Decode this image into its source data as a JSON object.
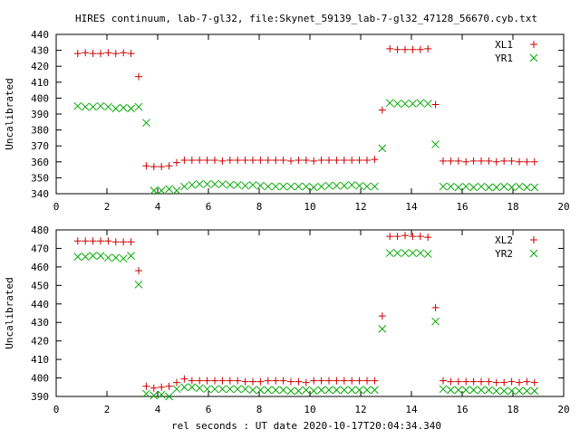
{
  "title": "HIRES continuum, lab-7-gl32, file:Skynet_59139_lab-7-gl32_47128_56670.cyb.txt",
  "xlabel": "rel seconds : UT date 2020-10-17T20:04:34.340",
  "colors": {
    "series1": "#cc0000",
    "series2": "#00aa00"
  },
  "chart_data": [
    {
      "type": "scatter",
      "ylabel": "Uncalibrated",
      "xlim": [
        0,
        20
      ],
      "ylim": [
        340,
        440
      ],
      "xticks": [
        0,
        2,
        4,
        6,
        8,
        10,
        12,
        14,
        16,
        18,
        20
      ],
      "yticks": [
        340,
        350,
        360,
        370,
        380,
        390,
        400,
        410,
        420,
        430,
        440
      ],
      "legend_position": "top-right",
      "series": [
        {
          "name": "XL1",
          "marker": "plus",
          "x": [
            0.85,
            1.15,
            1.45,
            1.75,
            2.05,
            2.35,
            2.65,
            2.95,
            3.25,
            3.55,
            3.85,
            4.15,
            4.45,
            4.75,
            5.05,
            5.35,
            5.65,
            5.95,
            6.25,
            6.55,
            6.85,
            7.15,
            7.45,
            7.75,
            8.05,
            8.35,
            8.65,
            8.95,
            9.25,
            9.55,
            9.85,
            10.15,
            10.45,
            10.75,
            11.05,
            11.35,
            11.65,
            11.95,
            12.25,
            12.55,
            12.85,
            13.15,
            13.45,
            13.75,
            14.05,
            14.35,
            14.65,
            14.95,
            15.25,
            15.55,
            15.85,
            16.15,
            16.45,
            16.75,
            17.05,
            17.35,
            17.65,
            17.95,
            18.25,
            18.55,
            18.85
          ],
          "y": [
            428,
            428.5,
            428,
            428,
            428.5,
            428,
            428.5,
            428,
            413.5,
            357.5,
            357,
            357,
            357.5,
            359.5,
            361,
            361,
            361,
            361,
            361,
            360.5,
            361,
            361,
            361,
            361,
            361,
            361,
            361,
            361,
            360.5,
            361,
            361,
            360.5,
            361,
            361,
            361,
            361,
            361,
            361,
            361,
            361.5,
            392.5,
            431,
            430.5,
            430.5,
            430.5,
            430.5,
            431,
            396,
            360.5,
            360.5,
            360.5,
            360,
            360.5,
            360.5,
            360.5,
            360,
            360.5,
            360.5,
            360,
            360,
            360
          ]
        },
        {
          "name": "YR1",
          "marker": "cross",
          "x": [
            0.85,
            1.15,
            1.45,
            1.75,
            2.05,
            2.35,
            2.65,
            2.95,
            3.25,
            3.55,
            3.85,
            4.15,
            4.45,
            4.75,
            5.05,
            5.35,
            5.65,
            5.95,
            6.25,
            6.55,
            6.85,
            7.15,
            7.45,
            7.75,
            8.05,
            8.35,
            8.65,
            8.95,
            9.25,
            9.55,
            9.85,
            10.15,
            10.45,
            10.75,
            11.05,
            11.35,
            11.65,
            11.95,
            12.25,
            12.55,
            12.85,
            13.15,
            13.45,
            13.75,
            14.05,
            14.35,
            14.65,
            14.95,
            15.25,
            15.55,
            15.85,
            16.15,
            16.45,
            16.75,
            17.05,
            17.35,
            17.65,
            17.95,
            18.25,
            18.55,
            18.85
          ],
          "y": [
            395,
            394.5,
            394.5,
            395,
            394.5,
            393.5,
            394,
            393.5,
            394.5,
            384.5,
            342,
            342,
            343,
            342,
            344.5,
            345.5,
            346,
            346,
            346,
            346,
            345.5,
            345.5,
            345,
            345.5,
            345,
            344.5,
            344.5,
            344.5,
            344.5,
            344.5,
            344.5,
            344,
            344.5,
            345,
            345,
            345,
            345.5,
            345,
            344.5,
            344.5,
            368.5,
            397,
            396.5,
            396.5,
            396.5,
            397,
            396.5,
            371,
            344.5,
            344.5,
            344,
            344.5,
            344,
            344.5,
            344,
            344,
            344.5,
            344,
            344.5,
            344,
            344
          ]
        }
      ]
    },
    {
      "type": "scatter",
      "ylabel": "Uncalibrated",
      "xlim": [
        0,
        20
      ],
      "ylim": [
        390,
        480
      ],
      "xticks": [
        0,
        2,
        4,
        6,
        8,
        10,
        12,
        14,
        16,
        18,
        20
      ],
      "yticks": [
        390,
        400,
        410,
        420,
        430,
        440,
        450,
        460,
        470,
        480
      ],
      "legend_position": "top-right",
      "series": [
        {
          "name": "XL2",
          "marker": "plus",
          "x": [
            0.85,
            1.15,
            1.45,
            1.75,
            2.05,
            2.35,
            2.65,
            2.95,
            3.25,
            3.55,
            3.85,
            4.15,
            4.45,
            4.75,
            5.05,
            5.35,
            5.65,
            5.95,
            6.25,
            6.55,
            6.85,
            7.15,
            7.45,
            7.75,
            8.05,
            8.35,
            8.65,
            8.95,
            9.25,
            9.55,
            9.85,
            10.15,
            10.45,
            10.75,
            11.05,
            11.35,
            11.65,
            11.95,
            12.25,
            12.55,
            12.85,
            13.15,
            13.45,
            13.75,
            14.05,
            14.35,
            14.65,
            14.95,
            15.25,
            15.55,
            15.85,
            16.15,
            16.45,
            16.75,
            17.05,
            17.35,
            17.65,
            17.95,
            18.25,
            18.55,
            18.85
          ],
          "y": [
            474,
            474,
            474,
            474,
            474,
            473.5,
            473.5,
            473.5,
            458,
            395.5,
            394.5,
            395,
            395.5,
            397.5,
            399.5,
            398.5,
            398.5,
            398.5,
            398.5,
            398.5,
            398.5,
            398.5,
            398,
            398,
            398,
            398.5,
            398.5,
            398.5,
            398,
            398,
            397.5,
            398.5,
            398.5,
            398.5,
            398.5,
            398.5,
            398.5,
            398.5,
            398.5,
            398.5,
            433.5,
            476.5,
            476.5,
            477,
            476.5,
            476.5,
            476,
            438,
            398.5,
            398,
            398,
            398,
            398,
            398,
            398,
            397.5,
            397.5,
            398,
            397.5,
            398,
            397.5
          ]
        },
        {
          "name": "YR2",
          "marker": "cross",
          "x": [
            0.85,
            1.15,
            1.45,
            1.75,
            2.05,
            2.35,
            2.65,
            2.95,
            3.25,
            3.55,
            3.85,
            4.15,
            4.45,
            4.75,
            5.05,
            5.35,
            5.65,
            5.95,
            6.25,
            6.55,
            6.85,
            7.15,
            7.45,
            7.75,
            8.05,
            8.35,
            8.65,
            8.95,
            9.25,
            9.55,
            9.85,
            10.15,
            10.45,
            10.75,
            11.05,
            11.35,
            11.65,
            11.95,
            12.25,
            12.55,
            12.85,
            13.15,
            13.45,
            13.75,
            14.05,
            14.35,
            14.65,
            14.95,
            15.25,
            15.55,
            15.85,
            16.15,
            16.45,
            16.75,
            17.05,
            17.35,
            17.65,
            17.95,
            18.25,
            18.55,
            18.85
          ],
          "y": [
            465.5,
            465.5,
            466,
            466,
            465,
            465,
            464.5,
            466,
            450.5,
            391.5,
            390.5,
            391,
            390,
            394,
            395,
            395,
            394.5,
            394,
            394,
            394,
            394,
            394,
            394,
            393.5,
            393.5,
            393.5,
            393.5,
            393.5,
            393,
            393,
            393.5,
            393,
            393.5,
            393.5,
            393.5,
            393.5,
            393.5,
            393.5,
            393.5,
            393.5,
            426.5,
            467.5,
            467.5,
            467.5,
            467.5,
            467.5,
            467,
            430.5,
            394,
            393.5,
            393.5,
            393.5,
            393.5,
            393.5,
            393.5,
            393,
            393,
            393,
            393,
            393,
            393
          ]
        }
      ]
    }
  ]
}
